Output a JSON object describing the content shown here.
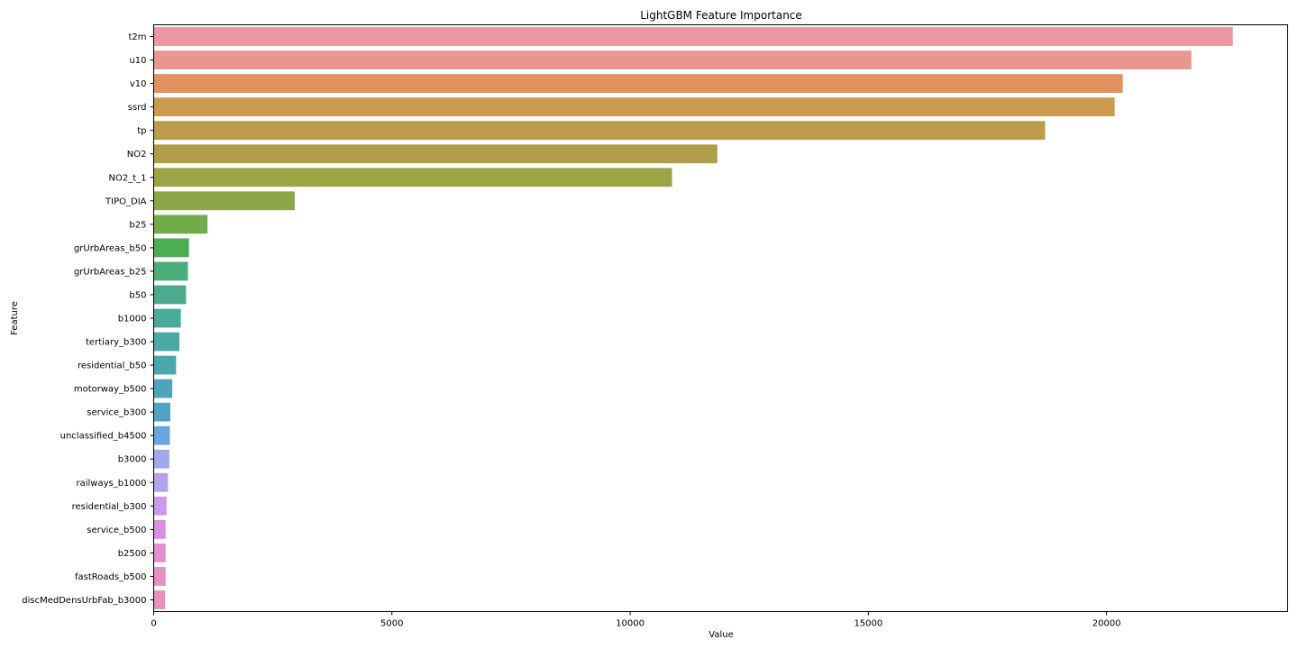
{
  "chart_data": {
    "type": "bar",
    "orientation": "horizontal",
    "title": "LightGBM Feature Importance",
    "xlabel": "Value",
    "ylabel": "Feature",
    "xlim": [
      0,
      23800
    ],
    "xticks": [
      0,
      5000,
      10000,
      15000,
      20000
    ],
    "grid": false,
    "categories": [
      "t2m",
      "u10",
      "v10",
      "ssrd",
      "tp",
      "NO2",
      "NO2_t_1",
      "TIPO_DIA",
      "b25",
      "grUrbAreas_b50",
      "grUrbAreas_b25",
      "b50",
      "b1000",
      "tertiary_b300",
      "residential_b50",
      "motorway_b500",
      "service_b300",
      "unclassified_b4500",
      "b3000",
      "railways_b1000",
      "residential_b300",
      "service_b500",
      "b2500",
      "fastRoads_b500",
      "discMedDensUrbFab_b3000"
    ],
    "values": [
      22650,
      21780,
      20340,
      20170,
      18710,
      11830,
      10880,
      2960,
      1130,
      740,
      720,
      680,
      570,
      540,
      470,
      390,
      350,
      340,
      330,
      300,
      270,
      250,
      250,
      250,
      240
    ],
    "colors": [
      "#ea96a3",
      "#e8968e",
      "#e3925f",
      "#ce9a4f",
      "#bd9b4a",
      "#ad9e47",
      "#9ea346",
      "#8ba748",
      "#72ac48",
      "#4bae50",
      "#4aae7c",
      "#4aab8f",
      "#49aa9a",
      "#4aa9a4",
      "#4ba7ae",
      "#4ea5b9",
      "#50a3c6",
      "#6ba5e2",
      "#a0a9ee",
      "#b3a2ee",
      "#cb99ec",
      "#dd8ce4",
      "#e38fd2",
      "#e68fc4",
      "#e893b7"
    ]
  }
}
